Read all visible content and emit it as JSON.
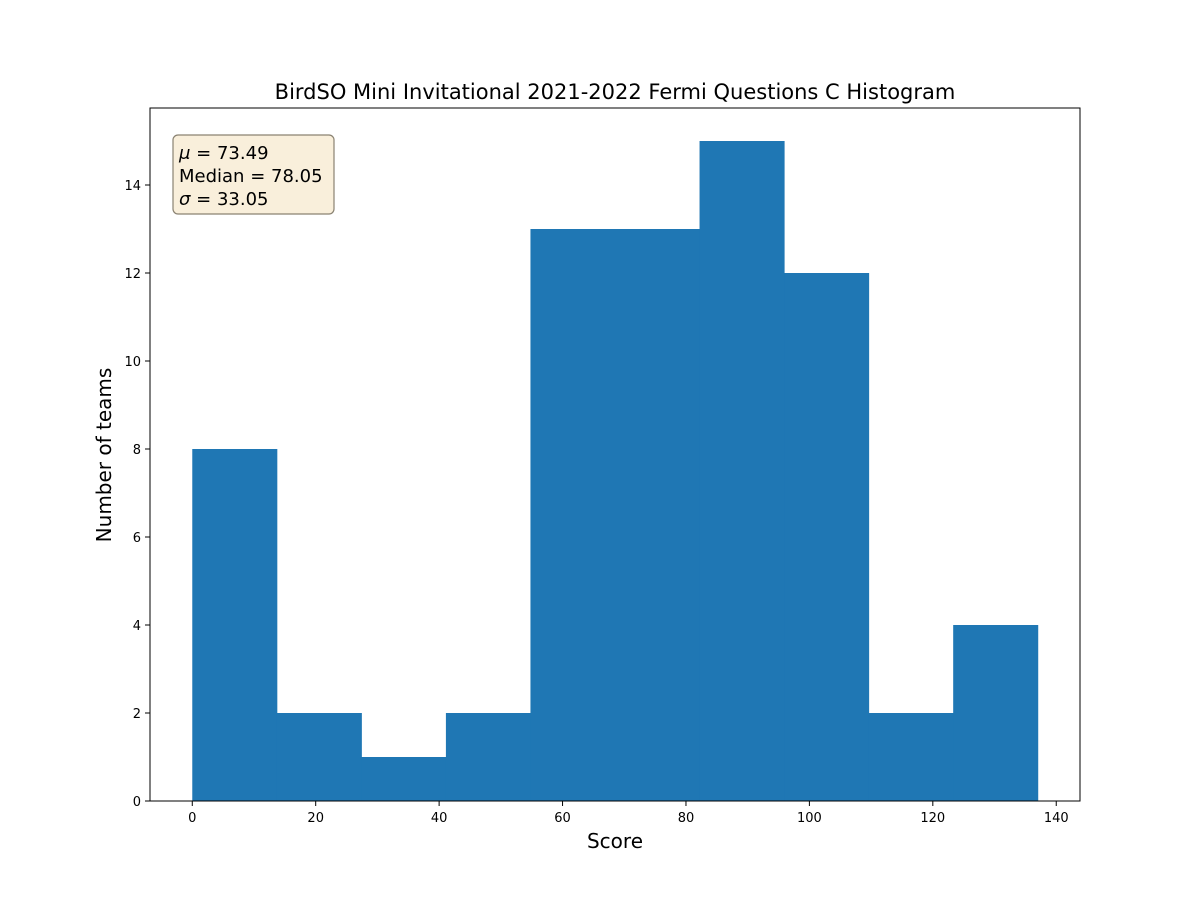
{
  "chart_data": {
    "type": "bar",
    "title": "BirdSO Mini Invitational 2021-2022 Fermi Questions C Histogram",
    "xlabel": "Score",
    "ylabel": "Number of teams",
    "bin_edges": [
      0,
      13.7,
      27.4,
      41.1,
      54.8,
      68.5,
      82.2,
      95.9,
      109.6,
      123.3,
      137
    ],
    "counts": [
      8,
      2,
      1,
      2,
      13,
      13,
      15,
      12,
      2,
      4
    ],
    "xlim": [
      -6.85,
      143.85
    ],
    "ylim": [
      0,
      15.75
    ],
    "xticks": [
      0,
      20,
      40,
      60,
      80,
      100,
      120,
      140
    ],
    "yticks": [
      0,
      2,
      4,
      6,
      8,
      10,
      12,
      14
    ],
    "bar_color": "#1f77b4",
    "grid": false,
    "stats_box": {
      "position": "top-left",
      "background": "#f9efdb",
      "border": "#8a8272",
      "lines": [
        {
          "symbol": "μ",
          "label": "",
          "value": "73.49"
        },
        {
          "symbol": "",
          "label": "Median",
          "value": "78.05"
        },
        {
          "symbol": "σ",
          "label": "",
          "value": "33.05"
        }
      ]
    }
  }
}
